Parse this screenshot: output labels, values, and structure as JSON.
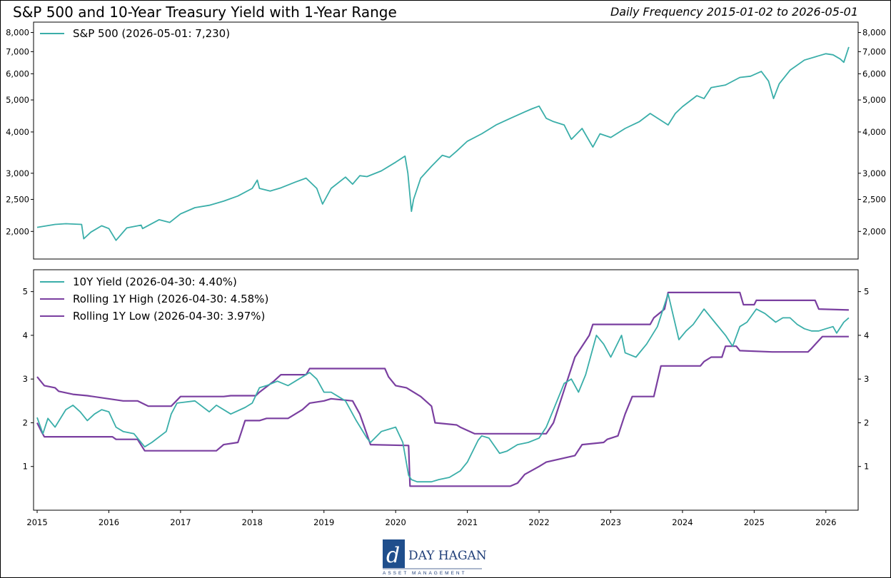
{
  "header": {
    "title": "S&P 500 and 10-Year Treasury Yield with 1-Year Range",
    "subtitle": "Daily Frequency 2015-01-02 to 2026-05-01"
  },
  "logo": {
    "name": "DAY HAGAN",
    "tagline": "ASSET MANAGEMENT"
  },
  "colors": {
    "teal": "#3aaea9",
    "purple": "#7a3fa0"
  },
  "chart_data": [
    {
      "type": "line",
      "panel": "top",
      "yscale": "log",
      "ylim": [
        1650,
        8600
      ],
      "xlim": [
        2014.95,
        2026.45
      ],
      "y_ticks": [
        2000,
        2500,
        3000,
        4000,
        5000,
        6000,
        7000,
        8000
      ],
      "y_tick_labels": [
        "2,000",
        "2,500",
        "3,000",
        "4,000",
        "5,000",
        "6,000",
        "7,000",
        "8,000"
      ],
      "legend_position": "top-left",
      "series": [
        {
          "name": "S&P 500 (2026-05-01: 7,230)",
          "color": "#3aaea9",
          "x": [
            2015.0,
            2015.25,
            2015.4,
            2015.62,
            2015.65,
            2015.75,
            2015.9,
            2016.0,
            2016.1,
            2016.25,
            2016.45,
            2016.47,
            2016.7,
            2016.85,
            2017.0,
            2017.2,
            2017.4,
            2017.6,
            2017.8,
            2018.0,
            2018.07,
            2018.1,
            2018.25,
            2018.4,
            2018.6,
            2018.75,
            2018.9,
            2018.98,
            2019.1,
            2019.3,
            2019.4,
            2019.5,
            2019.6,
            2019.8,
            2020.0,
            2020.13,
            2020.17,
            2020.22,
            2020.25,
            2020.35,
            2020.5,
            2020.65,
            2020.75,
            2020.85,
            2021.0,
            2021.2,
            2021.4,
            2021.6,
            2021.8,
            2021.9,
            2022.0,
            2022.1,
            2022.2,
            2022.35,
            2022.45,
            2022.6,
            2022.75,
            2022.85,
            2023.0,
            2023.2,
            2023.4,
            2023.55,
            2023.8,
            2023.9,
            2024.0,
            2024.2,
            2024.3,
            2024.4,
            2024.6,
            2024.8,
            2024.95,
            2025.1,
            2025.2,
            2025.27,
            2025.35,
            2025.5,
            2025.7,
            2025.9,
            2026.0,
            2026.1,
            2026.2,
            2026.25,
            2026.32
          ],
          "y": [
            2058,
            2100,
            2110,
            2100,
            1900,
            1990,
            2080,
            2040,
            1880,
            2050,
            2090,
            2040,
            2170,
            2130,
            2260,
            2360,
            2400,
            2470,
            2560,
            2700,
            2860,
            2700,
            2650,
            2710,
            2820,
            2900,
            2700,
            2420,
            2700,
            2920,
            2780,
            2950,
            2930,
            3050,
            3240,
            3380,
            3000,
            2300,
            2500,
            2900,
            3150,
            3400,
            3350,
            3500,
            3750,
            3950,
            4200,
            4400,
            4600,
            4700,
            4790,
            4400,
            4300,
            4200,
            3800,
            4100,
            3600,
            3950,
            3850,
            4100,
            4300,
            4550,
            4200,
            4550,
            4770,
            5150,
            5050,
            5450,
            5550,
            5850,
            5900,
            6100,
            5700,
            5050,
            5600,
            6150,
            6600,
            6800,
            6900,
            6850,
            6650,
            6500,
            7230
          ]
        }
      ]
    },
    {
      "type": "line",
      "panel": "bottom",
      "ylim": [
        0,
        5.5
      ],
      "xlim": [
        2014.95,
        2026.45
      ],
      "x_ticks": [
        2015,
        2016,
        2017,
        2018,
        2019,
        2020,
        2021,
        2022,
        2023,
        2024,
        2025,
        2026
      ],
      "x_tick_labels": [
        "2015",
        "2016",
        "2017",
        "2018",
        "2019",
        "2020",
        "2021",
        "2022",
        "2023",
        "2024",
        "2025",
        "2026"
      ],
      "y_ticks": [
        1,
        2,
        3,
        4,
        5
      ],
      "y_tick_labels": [
        "1",
        "2",
        "3",
        "4",
        "5"
      ],
      "legend_position": "top-left",
      "series": [
        {
          "name": "10Y Yield (2026-04-30: 4.40%)",
          "color": "#3aaea9",
          "x": [
            2015.0,
            2015.08,
            2015.15,
            2015.25,
            2015.4,
            2015.5,
            2015.6,
            2015.7,
            2015.8,
            2015.9,
            2016.0,
            2016.1,
            2016.2,
            2016.35,
            2016.5,
            2016.6,
            2016.8,
            2016.87,
            2016.95,
            2017.2,
            2017.4,
            2017.5,
            2017.7,
            2017.9,
            2018.0,
            2018.1,
            2018.2,
            2018.35,
            2018.5,
            2018.6,
            2018.8,
            2018.9,
            2019.0,
            2019.1,
            2019.2,
            2019.3,
            2019.45,
            2019.6,
            2019.65,
            2019.8,
            2019.9,
            2020.0,
            2020.1,
            2020.18,
            2020.22,
            2020.3,
            2020.5,
            2020.6,
            2020.75,
            2020.9,
            2021.0,
            2021.15,
            2021.2,
            2021.3,
            2021.45,
            2021.55,
            2021.7,
            2021.85,
            2022.0,
            2022.1,
            2022.2,
            2022.35,
            2022.45,
            2022.55,
            2022.65,
            2022.8,
            2022.9,
            2023.0,
            2023.15,
            2023.2,
            2023.35,
            2023.5,
            2023.65,
            2023.8,
            2023.95,
            2024.05,
            2024.15,
            2024.3,
            2024.45,
            2024.6,
            2024.7,
            2024.8,
            2024.9,
            2025.03,
            2025.15,
            2025.3,
            2025.4,
            2025.5,
            2025.6,
            2025.7,
            2025.8,
            2025.9,
            2026.0,
            2026.1,
            2026.15,
            2026.25,
            2026.32
          ],
          "y": [
            2.12,
            1.75,
            2.1,
            1.9,
            2.3,
            2.4,
            2.25,
            2.05,
            2.2,
            2.3,
            2.25,
            1.9,
            1.8,
            1.75,
            1.45,
            1.55,
            1.8,
            2.2,
            2.45,
            2.5,
            2.25,
            2.4,
            2.2,
            2.35,
            2.45,
            2.8,
            2.85,
            2.95,
            2.85,
            2.95,
            3.15,
            3.0,
            2.7,
            2.7,
            2.6,
            2.5,
            2.05,
            1.65,
            1.55,
            1.8,
            1.85,
            1.9,
            1.55,
            0.8,
            0.7,
            0.65,
            0.65,
            0.7,
            0.75,
            0.9,
            1.1,
            1.6,
            1.7,
            1.65,
            1.3,
            1.35,
            1.5,
            1.55,
            1.65,
            1.9,
            2.3,
            2.9,
            3.0,
            2.7,
            3.1,
            4.0,
            3.8,
            3.5,
            4.0,
            3.6,
            3.5,
            3.8,
            4.2,
            4.95,
            3.9,
            4.1,
            4.25,
            4.6,
            4.3,
            4.0,
            3.75,
            4.2,
            4.3,
            4.6,
            4.5,
            4.3,
            4.4,
            4.4,
            4.25,
            4.15,
            4.1,
            4.1,
            4.15,
            4.2,
            4.05,
            4.3,
            4.4
          ]
        },
        {
          "name": "Rolling 1Y High (2026-04-30: 4.58%)",
          "color": "#7a3fa0",
          "x": [
            2015.0,
            2015.05,
            2015.1,
            2015.25,
            2015.3,
            2015.5,
            2015.7,
            2016.2,
            2016.4,
            2016.5,
            2016.55,
            2016.87,
            2017.0,
            2017.6,
            2017.7,
            2018.05,
            2018.1,
            2018.3,
            2018.4,
            2018.75,
            2018.8,
            2019.85,
            2019.9,
            2020.0,
            2020.15,
            2020.35,
            2020.5,
            2020.55,
            2020.85,
            2020.9,
            2021.1,
            2021.2,
            2022.1,
            2022.2,
            2022.3,
            2022.4,
            2022.5,
            2022.7,
            2022.75,
            2023.55,
            2023.6,
            2023.75,
            2023.8,
            2024.8,
            2024.85,
            2025.0,
            2025.03,
            2025.85,
            2025.9,
            2026.32
          ],
          "y": [
            3.05,
            2.95,
            2.85,
            2.8,
            2.72,
            2.65,
            2.62,
            2.5,
            2.5,
            2.42,
            2.38,
            2.38,
            2.6,
            2.6,
            2.62,
            2.62,
            2.7,
            2.95,
            3.1,
            3.1,
            3.24,
            3.24,
            3.05,
            2.85,
            2.8,
            2.6,
            2.38,
            2.0,
            1.95,
            1.9,
            1.75,
            1.75,
            1.75,
            2.0,
            2.5,
            3.0,
            3.5,
            4.0,
            4.25,
            4.25,
            4.4,
            4.6,
            4.98,
            4.98,
            4.7,
            4.7,
            4.8,
            4.8,
            4.6,
            4.58
          ]
        },
        {
          "name": "Rolling 1Y Low (2026-04-30: 3.97%)",
          "color": "#7a3fa0",
          "x": [
            2015.0,
            2015.06,
            2015.1,
            2015.2,
            2016.05,
            2016.1,
            2016.4,
            2016.5,
            2017.5,
            2017.6,
            2017.8,
            2017.85,
            2017.9,
            2018.1,
            2018.2,
            2018.5,
            2018.7,
            2018.8,
            2019.0,
            2019.1,
            2019.4,
            2019.5,
            2019.65,
            2020.18,
            2020.2,
            2021.6,
            2021.7,
            2021.8,
            2022.0,
            2022.1,
            2022.5,
            2022.6,
            2022.9,
            2022.95,
            2023.1,
            2023.2,
            2023.3,
            2023.6,
            2023.7,
            2024.25,
            2024.3,
            2024.4,
            2024.55,
            2024.6,
            2024.75,
            2024.8,
            2025.25,
            2025.75,
            2025.8,
            2025.95,
            2026.32
          ],
          "y": [
            2.0,
            1.8,
            1.68,
            1.68,
            1.68,
            1.62,
            1.62,
            1.36,
            1.36,
            1.5,
            1.55,
            1.8,
            2.05,
            2.05,
            2.1,
            2.1,
            2.3,
            2.45,
            2.5,
            2.55,
            2.5,
            2.2,
            1.5,
            1.48,
            0.55,
            0.55,
            0.62,
            0.82,
            1.0,
            1.1,
            1.25,
            1.5,
            1.55,
            1.62,
            1.7,
            2.2,
            2.6,
            2.6,
            3.3,
            3.3,
            3.4,
            3.5,
            3.5,
            3.75,
            3.75,
            3.65,
            3.62,
            3.62,
            3.7,
            3.97,
            3.97
          ]
        }
      ]
    }
  ]
}
